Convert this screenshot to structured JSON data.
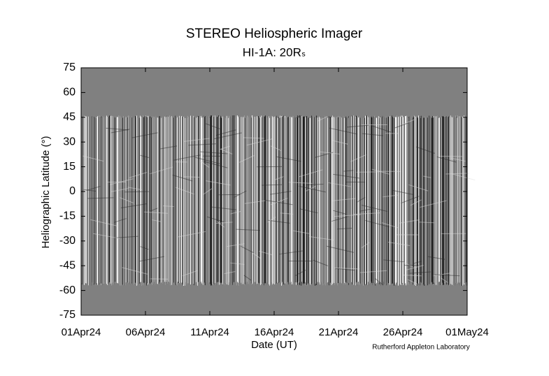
{
  "chart_data": {
    "type": "image",
    "title": "STEREO Heliospheric Imager",
    "subtitle": "HI-1A: 20Rₛ",
    "xlabel": "Date (UT)",
    "ylabel": "Heliographic Latitude (°)",
    "credit": "Rutherford Appleton Laboratory",
    "xlim": [
      "2024-04-01",
      "2024-05-01"
    ],
    "xticks": [
      {
        "value": "2024-04-01",
        "label": "01Apr24"
      },
      {
        "value": "2024-04-06",
        "label": "06Apr24"
      },
      {
        "value": "2024-04-11",
        "label": "11Apr24"
      },
      {
        "value": "2024-04-16",
        "label": "16Apr24"
      },
      {
        "value": "2024-04-21",
        "label": "21Apr24"
      },
      {
        "value": "2024-04-26",
        "label": "26Apr24"
      },
      {
        "value": "2024-05-01",
        "label": "01May24"
      }
    ],
    "ylim": [
      -75,
      75
    ],
    "yticks": [
      75,
      60,
      45,
      30,
      15,
      0,
      -15,
      -30,
      -45,
      -60,
      -75
    ]
  }
}
